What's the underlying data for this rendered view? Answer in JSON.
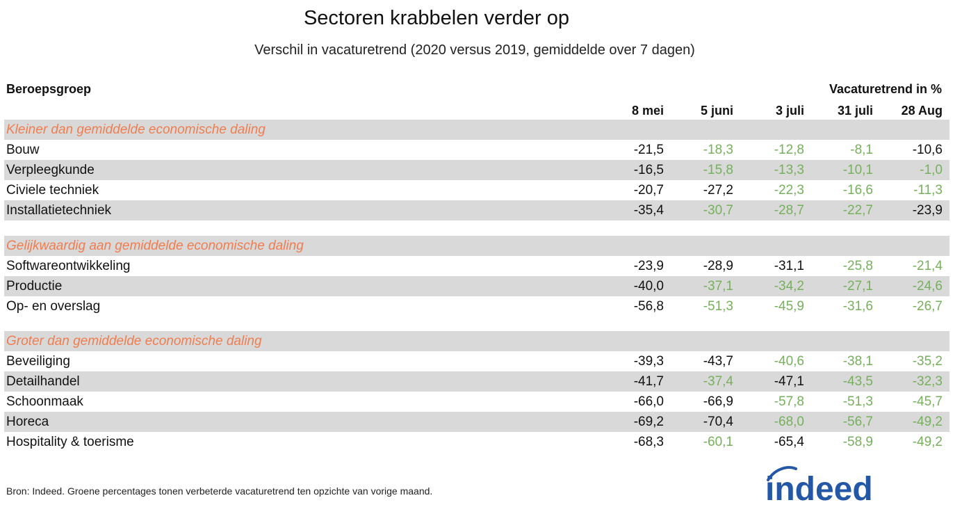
{
  "title": "Sectoren krabbelen verder op",
  "subtitle": "Verschil in vacaturetrend (2020 versus 2019, gemiddelde over 7 dagen)",
  "row_header": "Beroepsgroep",
  "value_header": "Vacaturetrend in %",
  "footer": "Bron: Indeed. Groene percentages tonen verbeterde vacaturetrend ten opzichte van vorige maand.",
  "logo_text": "indeed",
  "colors": {
    "improved": "#76b05c",
    "neutral": "#111111",
    "section": "#f07d4f",
    "band": "#d9d9d9",
    "logo": "#2557a7"
  },
  "chart_data": {
    "type": "table",
    "columns": [
      "8 mei",
      "5 juni",
      "3 juli",
      "31 juli",
      "28 Aug"
    ],
    "sections": [
      {
        "label": "Kleiner dan gemiddelde economische daling",
        "rows": [
          {
            "name": "Bouw",
            "values": [
              "-21,5",
              "-18,3",
              "-12,8",
              "-8,1",
              "-10,6"
            ],
            "improved": [
              false,
              true,
              true,
              true,
              false
            ]
          },
          {
            "name": "Verpleegkunde",
            "values": [
              "-16,5",
              "-15,8",
              "-13,3",
              "-10,1",
              "-1,0"
            ],
            "improved": [
              false,
              true,
              true,
              true,
              true
            ]
          },
          {
            "name": "Civiele techniek",
            "values": [
              "-20,7",
              "-27,2",
              "-22,3",
              "-16,6",
              "-11,3"
            ],
            "improved": [
              false,
              false,
              true,
              true,
              true
            ]
          },
          {
            "name": "Installatietechniek",
            "values": [
              "-35,4",
              "-30,7",
              "-28,7",
              "-22,7",
              "-23,9"
            ],
            "improved": [
              false,
              true,
              true,
              true,
              false
            ]
          }
        ]
      },
      {
        "label": "Gelijkwaardig aan gemiddelde economische daling",
        "rows": [
          {
            "name": "Softwareontwikkeling",
            "values": [
              "-23,9",
              "-28,9",
              "-31,1",
              "-25,8",
              "-21,4"
            ],
            "improved": [
              false,
              false,
              false,
              true,
              true
            ]
          },
          {
            "name": "Productie",
            "values": [
              "-40,0",
              "-37,1",
              "-34,2",
              "-27,1",
              "-24,6"
            ],
            "improved": [
              false,
              true,
              true,
              true,
              true
            ]
          },
          {
            "name": "Op- en overslag",
            "values": [
              "-56,8",
              "-51,3",
              "-45,9",
              "-31,6",
              "-26,7"
            ],
            "improved": [
              false,
              true,
              true,
              true,
              true
            ]
          }
        ]
      },
      {
        "label": "Groter dan gemiddelde economische daling",
        "rows": [
          {
            "name": "Beveiliging",
            "values": [
              "-39,3",
              "-43,7",
              "-40,6",
              "-38,1",
              "-35,2"
            ],
            "improved": [
              false,
              false,
              true,
              true,
              true
            ]
          },
          {
            "name": "Detailhandel",
            "values": [
              "-41,7",
              "-37,4",
              "-47,1",
              "-43,5",
              "-32,3"
            ],
            "improved": [
              false,
              true,
              false,
              true,
              true
            ]
          },
          {
            "name": "Schoonmaak",
            "values": [
              "-66,0",
              "-66,9",
              "-57,8",
              "-51,3",
              "-45,7"
            ],
            "improved": [
              false,
              false,
              true,
              true,
              true
            ]
          },
          {
            "name": "Horeca",
            "values": [
              "-69,2",
              "-70,4",
              "-68,0",
              "-56,7",
              "-49,2"
            ],
            "improved": [
              false,
              false,
              true,
              true,
              true
            ]
          },
          {
            "name": "Hospitality & toerisme",
            "values": [
              "-68,3",
              "-60,1",
              "-65,4",
              "-58,9",
              "-49,2"
            ],
            "improved": [
              false,
              true,
              false,
              true,
              true
            ]
          }
        ]
      }
    ]
  }
}
